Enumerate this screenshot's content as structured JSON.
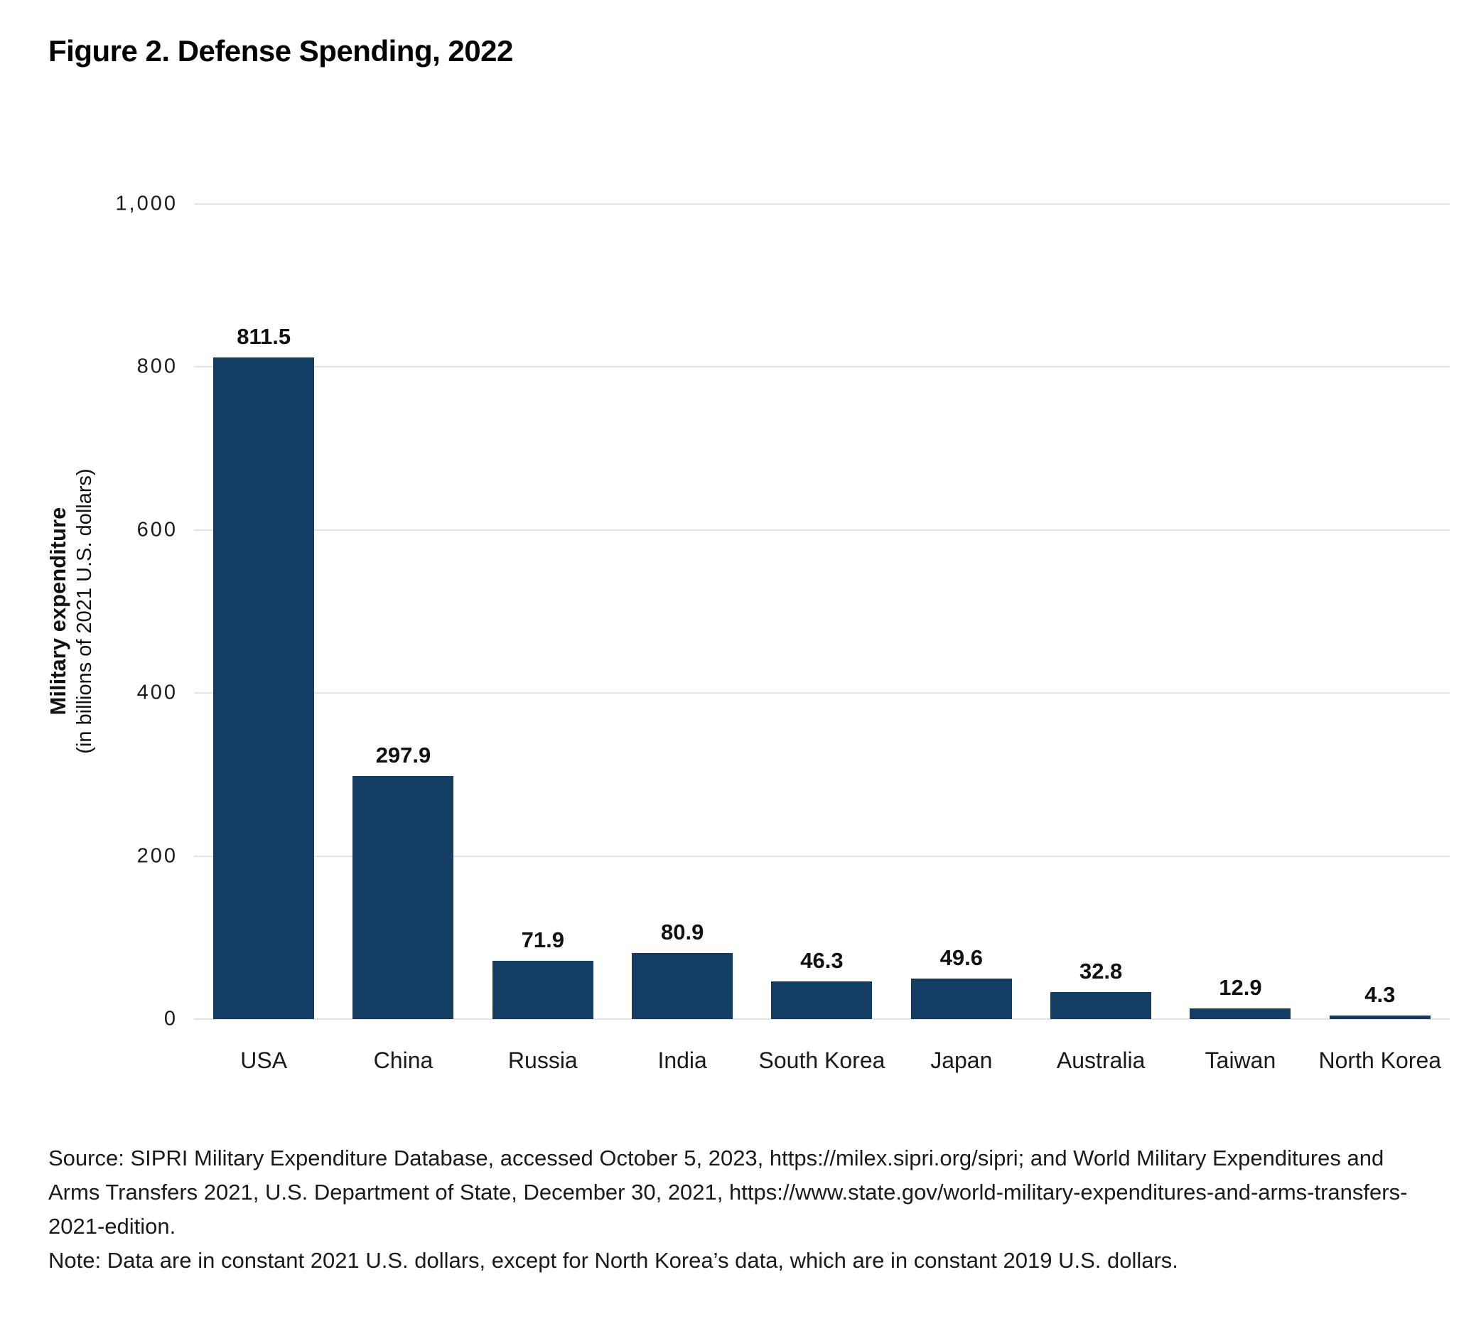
{
  "figure": {
    "title": "Figure 2. Defense Spending, 2022"
  },
  "chart_data": {
    "type": "bar",
    "title": "Figure 2. Defense Spending, 2022",
    "categories": [
      "USA",
      "China",
      "Russia",
      "India",
      "South Korea",
      "Japan",
      "Australia",
      "Taiwan",
      "North Korea"
    ],
    "values": [
      811.5,
      297.9,
      71.9,
      80.9,
      46.3,
      49.6,
      32.8,
      12.9,
      4.3
    ],
    "value_labels": [
      "811.5",
      "297.9",
      "71.9",
      "80.9",
      "46.3",
      "49.6",
      "32.8",
      "12.9",
      "4.3"
    ],
    "xlabel": "",
    "ylabel": "Military expenditure",
    "ylabel_sub": "(in billions of 2021 U.S. dollars)",
    "ylim": [
      0,
      1000
    ],
    "yticks": [
      {
        "value": 0,
        "label": "0"
      },
      {
        "value": 200,
        "label": "200"
      },
      {
        "value": 400,
        "label": "400"
      },
      {
        "value": 600,
        "label": "600"
      },
      {
        "value": 800,
        "label": "800"
      },
      {
        "value": 1000,
        "label": "1,000"
      }
    ],
    "grid": "horizontal",
    "legend": "none",
    "bar_color": "#133d63",
    "gridline_color": "#e4e4e4"
  },
  "footer": {
    "source": "Source: SIPRI Military Expenditure Database, accessed October 5, 2023, https://milex.sipri.org/sipri; and World Military Expenditures and Arms Transfers 2021, U.S. Department of State, December 30, 2021, https://www.state.gov/world-military-expenditures-and-arms-transfers-2021-edition.",
    "note": "Note: Data are in constant 2021 U.S. dollars, except for North Korea’s data, which are in constant 2019 U.S. dollars."
  }
}
